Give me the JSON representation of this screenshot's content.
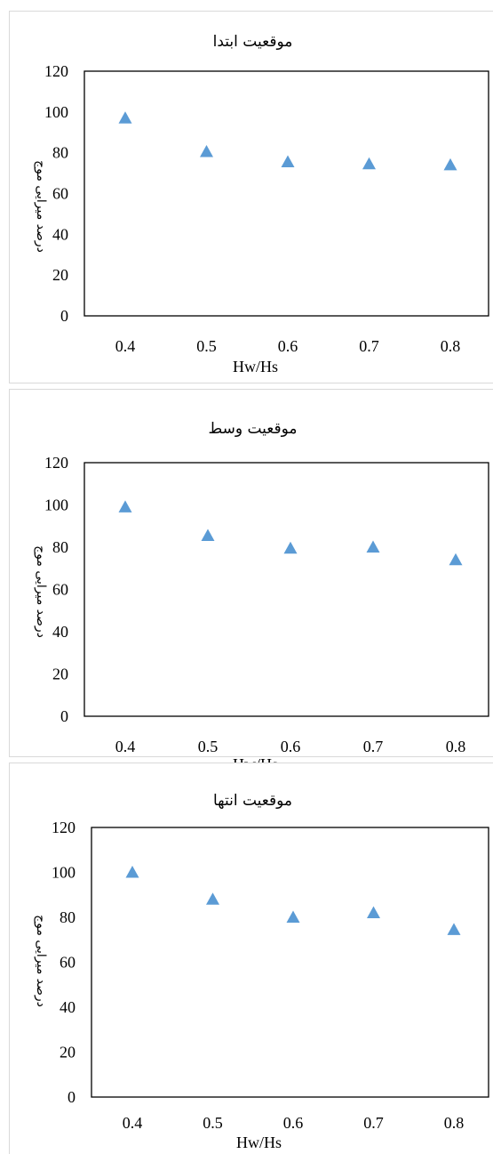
{
  "colors": {
    "marker": "#5b9bd5",
    "frame": "#000000",
    "panel_border": "#d9d9d9"
  },
  "chart_data": [
    {
      "type": "scatter",
      "title": "موقعیت ابتدا",
      "xlabel": "Hw/Hs",
      "ylabel": "درصد میرایی موج",
      "x": [
        0.4,
        0.5,
        0.6,
        0.7,
        0.8
      ],
      "x_tick_labels": [
        "0.4",
        "0.5",
        "0.6",
        "0.7",
        "0.8"
      ],
      "series": [
        {
          "values": [
            97,
            80.5,
            75.5,
            74.5,
            74
          ]
        }
      ],
      "ylim": [
        0,
        120
      ],
      "y_ticks": [
        0,
        20,
        40,
        60,
        80,
        100,
        120
      ],
      "grid": false
    },
    {
      "type": "scatter",
      "title": "موقعیت وسط",
      "xlabel": "Hw/Hs",
      "ylabel": "درصد میرایی موج",
      "x": [
        0.4,
        0.5,
        0.6,
        0.7,
        0.8
      ],
      "x_tick_labels": [
        "0.4",
        "0.5",
        "0.6",
        "0.7",
        "0.8"
      ],
      "series": [
        {
          "values": [
            99,
            85.5,
            79.5,
            80,
            74
          ]
        }
      ],
      "ylim": [
        0,
        120
      ],
      "y_ticks": [
        0,
        20,
        40,
        60,
        80,
        100,
        120
      ],
      "grid": false
    },
    {
      "type": "scatter",
      "title": "موقعیت انتها",
      "xlabel": "Hw/Hs",
      "ylabel": "درصد میرایی موج",
      "x": [
        0.4,
        0.5,
        0.6,
        0.7,
        0.8
      ],
      "x_tick_labels": [
        "0.4",
        "0.5",
        "0.6",
        "0.7",
        "0.8"
      ],
      "series": [
        {
          "values": [
            100,
            88,
            80,
            82,
            74.5
          ]
        }
      ],
      "ylim": [
        0,
        120
      ],
      "y_ticks": [
        0,
        20,
        40,
        60,
        80,
        100,
        120
      ],
      "grid": false
    }
  ]
}
